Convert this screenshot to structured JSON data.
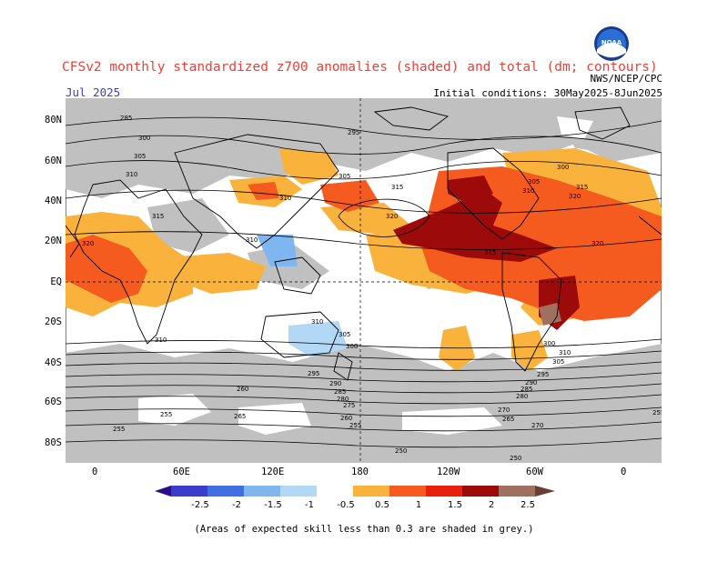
{
  "header": {
    "title": "CFSv2 monthly standardized z700 anomalies (shaded) and total (dm; contours)",
    "month": "Jul 2025",
    "organization": "NWS/NCEP/CPC",
    "initial_conditions": "Initial conditions: 30May2025-8Jun2025",
    "logo_text": "NOAA"
  },
  "axes": {
    "latitude_labels": [
      "80N",
      "60N",
      "40N",
      "20N",
      "EQ",
      "20S",
      "40S",
      "60S",
      "80S"
    ],
    "longitude_labels": [
      "0",
      "60E",
      "120E",
      "180",
      "120W",
      "60W",
      "0"
    ]
  },
  "contour_labels": [
    "285",
    "295",
    "300",
    "305",
    "310",
    "315",
    "320",
    "305",
    "310",
    "320",
    "315",
    "310",
    "315",
    "320",
    "300",
    "305",
    "310",
    "315",
    "320",
    "310",
    "305",
    "310",
    "300",
    "295",
    "290",
    "285",
    "280",
    "275",
    "270",
    "265",
    "260",
    "255",
    "250",
    "255",
    "310",
    "305",
    "300",
    "295",
    "290",
    "285",
    "280",
    "270",
    "265",
    "260",
    "255",
    "250",
    "255"
  ],
  "legend": {
    "tick_labels": [
      "-2.5",
      "-2",
      "-1.5",
      "-1",
      "-0.5",
      "0.5",
      "1",
      "1.5",
      "2",
      "2.5"
    ],
    "colors": [
      "#2a0d8a",
      "#3a3ccc",
      "#3f6fe0",
      "#7fb6ef",
      "#b2d8f6",
      "#ffffff",
      "#f9b23c",
      "#f55a1e",
      "#e8210c",
      "#9c0a0a",
      "#a0705e",
      "#6b3d33"
    ],
    "note": "(Areas of expected skill less than 0.3 are shaded in grey.)"
  },
  "map_colors": {
    "grey_low_skill": "#c0c0c0",
    "neutral": "#ffffff",
    "anom_0_5_1": "#f9b23c",
    "anom_1_1_5": "#f55a1e",
    "anom_1_5_2": "#9c0a0a",
    "anom_2_2_5": "#a0705e",
    "anom_neg_0_5": "#b2d8f6",
    "anom_neg_1": "#7fb6ef"
  }
}
